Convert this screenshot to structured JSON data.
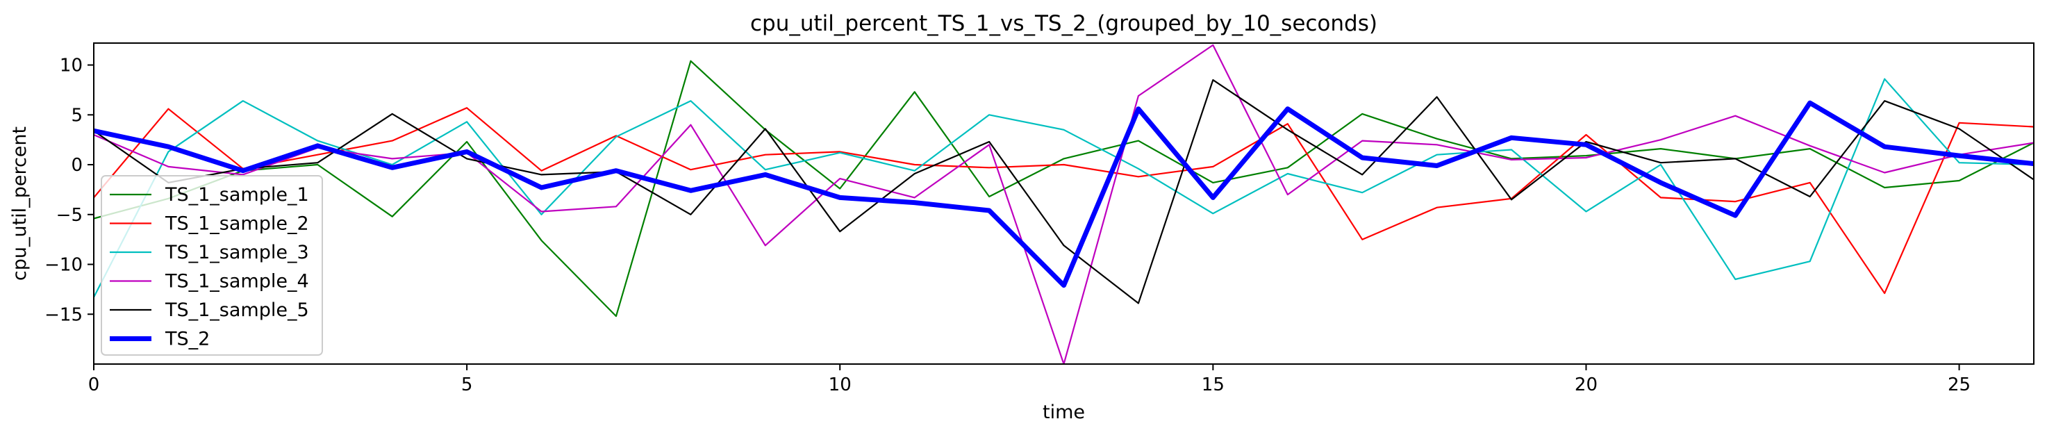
{
  "chart_data": {
    "type": "line",
    "title": "cpu_util_percent_TS_1_vs_TS_2_(grouped_by_10_seconds)",
    "xlabel": "time",
    "ylabel": "cpu_util_percent",
    "xlim": [
      0,
      26
    ],
    "ylim": [
      -20,
      12.2
    ],
    "x_ticks": [
      0,
      5,
      10,
      15,
      20,
      25
    ],
    "y_ticks": [
      -15,
      -10,
      -5,
      0,
      5,
      10
    ],
    "x_tick_labels": [
      "0",
      "5",
      "10",
      "15",
      "20",
      "25"
    ],
    "y_tick_labels": [
      "−15",
      "−10",
      "−5",
      "0",
      "5",
      "10"
    ],
    "grid": false,
    "legend_position": "lower-left",
    "x": [
      0,
      1,
      2,
      3,
      4,
      5,
      6,
      7,
      8,
      9,
      10,
      11,
      12,
      13,
      14,
      15,
      16,
      17,
      18,
      19,
      20,
      21,
      22,
      23,
      24,
      25,
      26
    ],
    "series": [
      {
        "name": "TS_1_sample_1",
        "color": "#008000",
        "linewidth": "thin",
        "values": [
          -5.4,
          -3.4,
          -0.6,
          0.0,
          -5.2,
          2.3,
          -7.6,
          -15.2,
          10.4,
          3.5,
          -2.4,
          7.3,
          -3.2,
          0.6,
          2.4,
          -1.8,
          -0.3,
          5.1,
          2.6,
          0.6,
          0.9,
          1.6,
          0.6,
          1.6,
          -2.3,
          -1.6,
          2.2
        ]
      },
      {
        "name": "TS_1_sample_2",
        "color": "#ff0000",
        "linewidth": "thin",
        "values": [
          -3.3,
          5.6,
          -0.4,
          1.0,
          2.4,
          5.7,
          -0.6,
          2.9,
          -0.5,
          1.0,
          1.3,
          0.0,
          -0.3,
          0.0,
          -1.2,
          -0.2,
          4.1,
          -7.5,
          -4.3,
          -3.4,
          3.0,
          -3.3,
          -3.7,
          -1.8,
          -12.9,
          4.2,
          3.8
        ]
      },
      {
        "name": "TS_1_sample_3",
        "color": "#00bfbf",
        "linewidth": "thin",
        "values": [
          -13.3,
          1.3,
          6.4,
          2.4,
          0.0,
          4.3,
          -5.0,
          2.8,
          6.4,
          -0.5,
          1.2,
          -0.6,
          5.0,
          3.5,
          -0.4,
          -4.9,
          -0.9,
          -2.8,
          1.0,
          1.5,
          -4.7,
          0.0,
          -11.5,
          -9.7,
          8.6,
          0.2,
          0.0
        ]
      },
      {
        "name": "TS_1_sample_4",
        "color": "#bf00bf",
        "linewidth": "thin",
        "values": [
          3.0,
          -0.2,
          -1.0,
          1.7,
          0.6,
          1.2,
          -4.7,
          -4.2,
          4.0,
          -8.1,
          -1.4,
          -3.3,
          2.0,
          -20.0,
          6.9,
          12.0,
          -3.0,
          2.4,
          2.0,
          0.5,
          0.7,
          2.5,
          4.9,
          1.9,
          -0.8,
          1.0,
          2.2
        ]
      },
      {
        "name": "TS_1_sample_5",
        "color": "#000000",
        "linewidth": "thin",
        "values": [
          3.4,
          -1.8,
          -0.4,
          0.2,
          5.1,
          0.6,
          -1.0,
          -0.7,
          -5.0,
          3.6,
          -6.7,
          -0.9,
          2.3,
          -8.1,
          -13.9,
          8.5,
          3.5,
          -1.0,
          6.8,
          -3.5,
          2.3,
          0.2,
          0.6,
          -3.2,
          6.4,
          3.6,
          -1.5
        ]
      },
      {
        "name": "TS_2",
        "color": "#0000ff",
        "linewidth": "thick",
        "values": [
          3.4,
          1.8,
          -0.6,
          1.9,
          -0.3,
          1.3,
          -2.3,
          -0.6,
          -2.6,
          -1.0,
          -3.3,
          -3.8,
          -4.6,
          -12.1,
          5.6,
          -3.3,
          5.6,
          0.7,
          -0.1,
          2.7,
          2.0,
          -1.8,
          -5.1,
          6.2,
          1.8,
          0.9,
          0.1
        ]
      }
    ]
  }
}
